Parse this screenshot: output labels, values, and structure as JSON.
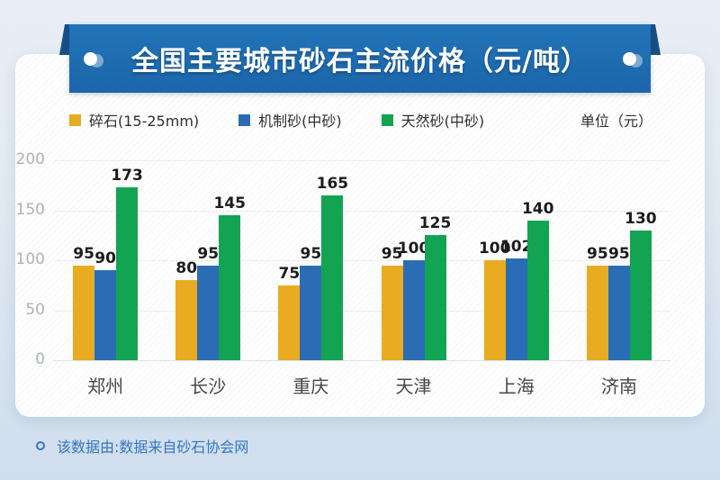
{
  "banner": {
    "title": "全国主要城市砂石主流价格（元/吨）"
  },
  "legend": {
    "unit_label": "单位（元）"
  },
  "chart_data": {
    "type": "bar",
    "title": "全国主要城市砂石主流价格（元/吨）",
    "categories": [
      "郑州",
      "长沙",
      "重庆",
      "天津",
      "上海",
      "济南"
    ],
    "series": [
      {
        "name": "碎石(15-25mm)",
        "color": "#e9ab21",
        "values": [
          95,
          80,
          75,
          95,
          100,
          95
        ]
      },
      {
        "name": "机制砂(中砂)",
        "color": "#2a6db5",
        "values": [
          90,
          95,
          95,
          100,
          102,
          95
        ]
      },
      {
        "name": "天然砂(中砂)",
        "color": "#12a452",
        "values": [
          173,
          145,
          165,
          125,
          140,
          130
        ]
      }
    ],
    "xlabel": "",
    "ylabel": "",
    "unit": "元",
    "ylim": [
      0,
      200
    ],
    "yticks": [
      0,
      50,
      100,
      150,
      200
    ],
    "grid": true,
    "legend_position": "top"
  },
  "footer": {
    "note": "该数据由:数据来自砂石协会网"
  },
  "colors": {
    "banner_blue": "#1e6bb0",
    "banner_fold": "#174f86",
    "bar_orange": "#e9ab21",
    "bar_blue": "#2a6db5",
    "bar_green": "#12a452",
    "footer_blue": "#3377bd",
    "page_bg_top": "#e9eef5",
    "page_bg_bottom": "#cfdded"
  }
}
